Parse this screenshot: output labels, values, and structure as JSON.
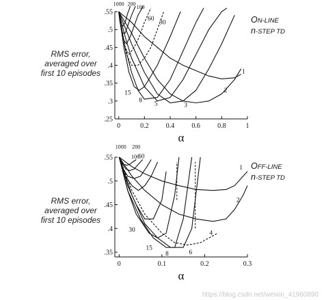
{
  "watermark": "https://blog.csdn.net/weixin_41960890",
  "chart_data": [
    {
      "type": "line",
      "method_label": {
        "first": "O",
        "rest": "N-LINE",
        "line2_n": "n",
        "line2_rest": "-STEP TD"
      },
      "ylabel_lines": [
        "RMS error,",
        "averaged over",
        "first 10 episodes"
      ],
      "xlabel": "α",
      "xlim": [
        -0.03,
        1.0
      ],
      "ylim": [
        0.25,
        0.55
      ],
      "xticks": [
        0,
        0.2,
        0.4,
        0.6,
        0.8,
        1
      ],
      "xtick_labels": [
        "0",
        "0.2",
        "0.4",
        "0.6",
        "0.8",
        "1"
      ],
      "yticks": [
        0.25,
        0.3,
        0.35,
        0.4,
        0.45,
        0.5,
        0.55
      ],
      "ytick_labels": [
        ".25",
        ".3",
        ".35",
        ".4",
        ".45",
        ".5",
        ".55"
      ],
      "series": [
        {
          "name": "1",
          "dashed": false,
          "x": [
            0,
            0.1,
            0.2,
            0.3,
            0.4,
            0.5,
            0.6,
            0.7,
            0.8,
            0.9,
            0.95
          ],
          "y": [
            0.55,
            0.52,
            0.48,
            0.45,
            0.42,
            0.4,
            0.385,
            0.37,
            0.362,
            0.365,
            0.375
          ],
          "label_at": [
            0.97,
            0.377
          ]
        },
        {
          "name": "2",
          "dashed": false,
          "x": [
            0,
            0.1,
            0.2,
            0.3,
            0.4,
            0.5,
            0.6,
            0.7,
            0.8,
            0.9,
            0.95
          ],
          "y": [
            0.55,
            0.49,
            0.42,
            0.36,
            0.32,
            0.3,
            0.295,
            0.3,
            0.32,
            0.36,
            0.39
          ],
          "label_at": [
            0.83,
            0.325
          ]
        },
        {
          "name": "3",
          "dashed": false,
          "x": [
            0,
            0.1,
            0.2,
            0.3,
            0.4,
            0.5,
            0.6,
            0.7,
            0.8,
            0.9
          ],
          "y": [
            0.55,
            0.46,
            0.38,
            0.32,
            0.295,
            0.3,
            0.33,
            0.39,
            0.46,
            0.54
          ],
          "label_at": [
            0.52,
            0.283
          ]
        },
        {
          "name": "5",
          "dashed": false,
          "x": [
            0,
            0.05,
            0.1,
            0.2,
            0.3,
            0.4,
            0.5,
            0.6,
            0.7,
            0.8,
            0.84
          ],
          "y": [
            0.55,
            0.48,
            0.42,
            0.34,
            0.3,
            0.31,
            0.36,
            0.43,
            0.5,
            0.55,
            0.56
          ],
          "label_at": [
            0.29,
            0.287
          ]
        },
        {
          "name": "8",
          "dashed": false,
          "x": [
            0,
            0.05,
            0.1,
            0.15,
            0.2,
            0.3,
            0.4,
            0.5,
            0.6,
            0.66
          ],
          "y": [
            0.55,
            0.45,
            0.38,
            0.33,
            0.305,
            0.31,
            0.36,
            0.44,
            0.52,
            0.56
          ],
          "label_at": [
            0.17,
            0.297
          ]
        },
        {
          "name": "15",
          "dashed": false,
          "x": [
            0,
            0.04,
            0.08,
            0.12,
            0.16,
            0.2,
            0.3,
            0.4,
            0.48
          ],
          "y": [
            0.55,
            0.45,
            0.38,
            0.34,
            0.33,
            0.34,
            0.4,
            0.48,
            0.55
          ],
          "label_at": [
            0.07,
            0.318
          ]
        },
        {
          "name": "30",
          "dashed": true,
          "x": [
            0,
            0.03,
            0.06,
            0.1,
            0.15,
            0.2,
            0.25,
            0.3,
            0.35
          ],
          "y": [
            0.55,
            0.48,
            0.43,
            0.4,
            0.4,
            0.42,
            0.45,
            0.5,
            0.55
          ],
          "label_at": [
            0.34,
            0.515
          ]
        },
        {
          "name": "60",
          "dashed": true,
          "x": [
            0,
            0.02,
            0.05,
            0.08,
            0.12,
            0.16,
            0.2,
            0.25
          ],
          "y": [
            0.55,
            0.5,
            0.45,
            0.43,
            0.45,
            0.48,
            0.52,
            0.56
          ],
          "label_at": [
            0.25,
            0.525
          ]
        },
        {
          "name": "100",
          "dashed": false,
          "x": [
            0,
            0.02,
            0.04,
            0.06,
            0.09,
            0.12,
            0.15,
            0.19
          ],
          "y": [
            0.55,
            0.5,
            0.47,
            0.46,
            0.48,
            0.51,
            0.54,
            0.565
          ],
          "label_at": [
            0.17,
            0.558
          ]
        },
        {
          "name": "200",
          "dashed": false,
          "x": [
            0,
            0.015,
            0.03,
            0.05,
            0.07,
            0.1,
            0.13
          ],
          "y": [
            0.55,
            0.51,
            0.49,
            0.49,
            0.51,
            0.54,
            0.565
          ],
          "label_at": [
            0.1,
            0.566
          ]
        },
        {
          "name": "1000",
          "dashed": false,
          "x": [
            0,
            0.01,
            0.02,
            0.035,
            0.05,
            0.07,
            0.09
          ],
          "y": [
            0.55,
            0.52,
            0.51,
            0.51,
            0.52,
            0.545,
            0.565
          ],
          "label_at": [
            0.0,
            0.566
          ]
        }
      ],
      "marks": []
    },
    {
      "type": "line",
      "method_label": {
        "first": "O",
        "rest": "FF-LINE",
        "line2_n": "n",
        "line2_rest": "-STEP TD"
      },
      "ylabel_lines": [
        "RMS error,",
        "averaged over",
        "first 10 episodes"
      ],
      "xlabel": "α",
      "xlim": [
        -0.01,
        0.3
      ],
      "ylim": [
        0.34,
        0.55
      ],
      "xticks": [
        0,
        0.1,
        0.2,
        0.3
      ],
      "xtick_labels": [
        "0",
        "0.1",
        "0.2",
        "0.3"
      ],
      "yticks": [
        0.35,
        0.4,
        0.45,
        0.5,
        0.55
      ],
      "ytick_labels": [
        ".35",
        ".4",
        ".45",
        ".5",
        ".55"
      ],
      "series": [
        {
          "name": "1",
          "dashed": false,
          "x": [
            0,
            0.03,
            0.06,
            0.1,
            0.14,
            0.18,
            0.22,
            0.25,
            0.27,
            0.29,
            0.3
          ],
          "y": [
            0.55,
            0.53,
            0.515,
            0.5,
            0.49,
            0.482,
            0.48,
            0.482,
            0.49,
            0.51,
            0.52
          ],
          "label_at": [
            0.285,
            0.524
          ]
        },
        {
          "name": "2",
          "dashed": false,
          "x": [
            0,
            0.03,
            0.06,
            0.1,
            0.14,
            0.18,
            0.22,
            0.25,
            0.27,
            0.29,
            0.3
          ],
          "y": [
            0.55,
            0.51,
            0.48,
            0.45,
            0.43,
            0.42,
            0.415,
            0.42,
            0.44,
            0.47,
            0.49
          ],
          "label_at": [
            0.278,
            0.456
          ]
        },
        {
          "name": "4",
          "dashed": true,
          "x": [
            0,
            0.03,
            0.06,
            0.1,
            0.13,
            0.16,
            0.19,
            0.21,
            0.23
          ],
          "y": [
            0.55,
            0.48,
            0.43,
            0.39,
            0.37,
            0.365,
            0.37,
            0.38,
            0.39
          ],
          "label_at": [
            0.215,
            0.387
          ]
        },
        {
          "name": "6",
          "dashed": false,
          "x": [
            0,
            0.03,
            0.06,
            0.09,
            0.12,
            0.15,
            0.17,
            0.19
          ],
          "y": [
            0.55,
            0.47,
            0.41,
            0.38,
            0.36,
            0.36,
            0.4,
            0.55
          ],
          "label_at": [
            0.167,
            0.346
          ]
        },
        {
          "name": "8",
          "dashed": false,
          "x": [
            0,
            0.02,
            0.05,
            0.08,
            0.11,
            0.13,
            0.15,
            0.17
          ],
          "y": [
            0.55,
            0.48,
            0.42,
            0.38,
            0.36,
            0.36,
            0.42,
            0.55
          ],
          "label_at": [
            0.112,
            0.343
          ]
        },
        {
          "name": "15",
          "dashed": false,
          "x": [
            0,
            0.02,
            0.04,
            0.07,
            0.09,
            0.11,
            0.13,
            0.14
          ],
          "y": [
            0.55,
            0.48,
            0.43,
            0.39,
            0.38,
            0.39,
            0.47,
            0.55
          ],
          "label_at": [
            0.07,
            0.355
          ]
        },
        {
          "name": "30",
          "dashed": false,
          "x": [
            0,
            0.02,
            0.04,
            0.06,
            0.08,
            0.1,
            0.11
          ],
          "y": [
            0.55,
            0.49,
            0.45,
            0.42,
            0.42,
            0.46,
            0.52
          ],
          "label_at": [
            0.03,
            0.393
          ]
        },
        {
          "name": "60",
          "dashed": false,
          "x": [
            0,
            0.015,
            0.03,
            0.045,
            0.06,
            0.075,
            0.09
          ],
          "y": [
            0.55,
            0.51,
            0.49,
            0.48,
            0.49,
            0.51,
            0.54
          ],
          "label_at": [
            0.052,
            0.548
          ]
        },
        {
          "name": "100",
          "dashed": false,
          "x": [
            0,
            0.01,
            0.02,
            0.035,
            0.05,
            0.065,
            0.075
          ],
          "y": [
            0.55,
            0.525,
            0.51,
            0.505,
            0.51,
            0.53,
            0.545
          ],
          "label_at": [
            0.038,
            0.547
          ]
        },
        {
          "name": "200",
          "dashed": false,
          "x": [
            0,
            0.008,
            0.016,
            0.025,
            0.035,
            0.045,
            0.055
          ],
          "y": [
            0.55,
            0.535,
            0.525,
            0.522,
            0.525,
            0.535,
            0.545
          ],
          "label_at": [
            0.04,
            0.568
          ]
        },
        {
          "name": "1000",
          "dashed": false,
          "x": [
            0,
            0.005,
            0.01,
            0.018,
            0.025,
            0.032,
            0.04
          ],
          "y": [
            0.55,
            0.54,
            0.535,
            0.533,
            0.535,
            0.54,
            0.545
          ],
          "label_at": [
            0.004,
            0.568
          ]
        }
      ],
      "marks": [
        {
          "x": [
            0.135,
            0.135
          ],
          "y": [
            0.46,
            0.54
          ],
          "dashed": true
        },
        {
          "x": [
            0.178,
            0.178
          ],
          "y": [
            0.4,
            0.54
          ],
          "dashed": true
        }
      ]
    }
  ]
}
